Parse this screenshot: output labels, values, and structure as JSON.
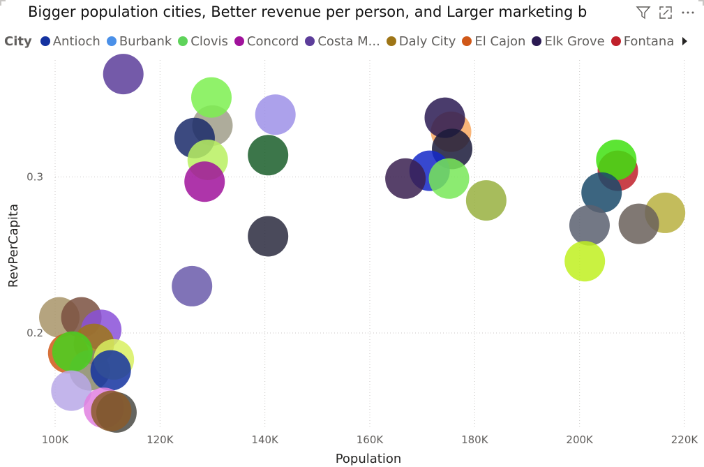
{
  "title": "Bigger population cities, Better revenue per person, and Larger marketing b",
  "header_icons": [
    "filter-icon",
    "focus-mode-icon",
    "more-options-icon"
  ],
  "legend": {
    "title": "City",
    "items": [
      {
        "label": "Antioch",
        "color": "#1432a0"
      },
      {
        "label": "Burbank",
        "color": "#4a90e8"
      },
      {
        "label": "Clovis",
        "color": "#5ed35a"
      },
      {
        "label": "Concord",
        "color": "#a0129b"
      },
      {
        "label": "Costa M...",
        "color": "#5c3d9a"
      },
      {
        "label": "Daly City",
        "color": "#9e7516"
      },
      {
        "label": "El Cajon",
        "color": "#d05818"
      },
      {
        "label": "Elk Grove",
        "color": "#2b1a52"
      },
      {
        "label": "Fontana",
        "color": "#c0202a"
      }
    ]
  },
  "chart_data": {
    "type": "scatter",
    "title": "Bigger population cities, Better revenue per person, and Larger marketing b",
    "xlabel": "Population",
    "ylabel": "RevPerCapita",
    "xlim": [
      100000,
      220000
    ],
    "ylim": [
      0.14,
      0.375
    ],
    "x_ticks": [
      {
        "value": 100000,
        "label": "100K"
      },
      {
        "value": 120000,
        "label": "120K"
      },
      {
        "value": 140000,
        "label": "140K"
      },
      {
        "value": 160000,
        "label": "160K"
      },
      {
        "value": 180000,
        "label": "180K"
      },
      {
        "value": 200000,
        "label": "200K"
      },
      {
        "value": 220000,
        "label": "220K"
      }
    ],
    "y_ticks": [
      {
        "value": 0.2,
        "label": "0.2"
      },
      {
        "value": 0.3,
        "label": "0.3"
      }
    ],
    "grid": "dotted",
    "legend_position": "top",
    "points": [
      {
        "x": 113000,
        "y": 0.366,
        "color": "#5c3d9a"
      },
      {
        "x": 130000,
        "y": 0.333,
        "color": "#a09e8a"
      },
      {
        "x": 129800,
        "y": 0.351,
        "color": "#7cf050"
      },
      {
        "x": 142000,
        "y": 0.34,
        "color": "#9e90e8"
      },
      {
        "x": 126600,
        "y": 0.325,
        "color": "#1a2a6a"
      },
      {
        "x": 140600,
        "y": 0.314,
        "color": "#1a5e2a"
      },
      {
        "x": 129100,
        "y": 0.311,
        "color": "#b8f060"
      },
      {
        "x": 128500,
        "y": 0.297,
        "color": "#a0129b"
      },
      {
        "x": 140600,
        "y": 0.262,
        "color": "#2a2a3e"
      },
      {
        "x": 126100,
        "y": 0.23,
        "color": "#6a5aaa"
      },
      {
        "x": 100800,
        "y": 0.21,
        "color": "#a89468"
      },
      {
        "x": 105000,
        "y": 0.21,
        "color": "#7a5040"
      },
      {
        "x": 108800,
        "y": 0.202,
        "color": "#8a50d8"
      },
      {
        "x": 107400,
        "y": 0.193,
        "color": "#9e7516"
      },
      {
        "x": 102500,
        "y": 0.187,
        "color": "#d05818"
      },
      {
        "x": 106600,
        "y": 0.176,
        "color": "#8a8a6a"
      },
      {
        "x": 111200,
        "y": 0.183,
        "color": "#d8f060"
      },
      {
        "x": 103300,
        "y": 0.188,
        "color": "#48d020"
      },
      {
        "x": 110600,
        "y": 0.176,
        "color": "#1432a0"
      },
      {
        "x": 103100,
        "y": 0.163,
        "color": "#b8a8e8"
      },
      {
        "x": 109300,
        "y": 0.152,
        "color": "#e080e0"
      },
      {
        "x": 111700,
        "y": 0.149,
        "color": "#4a4a44"
      },
      {
        "x": 110700,
        "y": 0.15,
        "color": "#8a5a2a"
      },
      {
        "x": 175500,
        "y": 0.329,
        "color": "#f8a860"
      },
      {
        "x": 174300,
        "y": 0.338,
        "color": "#2a1a52"
      },
      {
        "x": 175700,
        "y": 0.318,
        "color": "#1a1a3a"
      },
      {
        "x": 171400,
        "y": 0.304,
        "color": "#1428c8"
      },
      {
        "x": 166800,
        "y": 0.299,
        "color": "#3a2050"
      },
      {
        "x": 175100,
        "y": 0.299,
        "color": "#78e858"
      },
      {
        "x": 182200,
        "y": 0.285,
        "color": "#98b040"
      },
      {
        "x": 207300,
        "y": 0.304,
        "color": "#c0202a"
      },
      {
        "x": 207000,
        "y": 0.311,
        "color": "#40e010"
      },
      {
        "x": 204200,
        "y": 0.29,
        "color": "#1a4a6a"
      },
      {
        "x": 216300,
        "y": 0.277,
        "color": "#b8b040"
      },
      {
        "x": 201900,
        "y": 0.269,
        "color": "#5a6070"
      },
      {
        "x": 211300,
        "y": 0.27,
        "color": "#6a605a"
      },
      {
        "x": 201000,
        "y": 0.246,
        "color": "#c0f020"
      }
    ]
  }
}
